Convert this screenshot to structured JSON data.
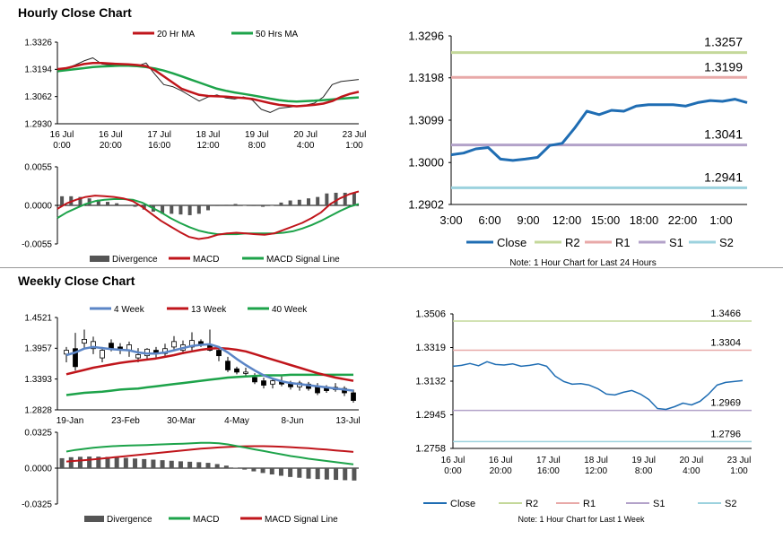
{
  "page": {
    "hourly_title": "Hourly Close Chart",
    "weekly_title": "Weekly Close Chart"
  },
  "colors": {
    "close": "#1f6db3",
    "ma_red": "#c0151b",
    "ma_green": "#1da34a",
    "r2": "#c4d89a",
    "r1": "#e8a9a8",
    "s1": "#b3a2c9",
    "s2": "#9cd2de",
    "divergence": "#555555",
    "four_week": "#5b85c6",
    "candle": "#000000"
  },
  "chart_data": [
    {
      "id": "hourly_price",
      "type": "line",
      "legend": [
        "20 Hr MA",
        "50 Hrs MA"
      ],
      "yticks": [
        "1.3326",
        "1.3194",
        "1.3062",
        "1.2930"
      ],
      "ylim": [
        1.293,
        1.3326
      ],
      "xticks": [
        [
          "16 Jul",
          "0:00"
        ],
        [
          "16 Jul",
          "20:00"
        ],
        [
          "17 Jul",
          "16:00"
        ],
        [
          "18 Jul",
          "12:00"
        ],
        [
          "19 Jul",
          "8:00"
        ],
        [
          "20 Jul",
          "4:00"
        ],
        [
          "23 Jul",
          "1:00"
        ]
      ],
      "close": [
        1.318,
        1.32,
        1.3215,
        1.3235,
        1.325,
        1.322,
        1.3215,
        1.322,
        1.3218,
        1.321,
        1.3225,
        1.317,
        1.312,
        1.311,
        1.309,
        1.3065,
        1.304,
        1.306,
        1.307,
        1.3055,
        1.305,
        1.306,
        1.3045,
        1.3,
        1.2985,
        1.3005,
        1.301,
        1.3015,
        1.302,
        1.303,
        1.306,
        1.312,
        1.3135,
        1.314,
        1.3145
      ],
      "ma20": [
        1.3195,
        1.32,
        1.321,
        1.322,
        1.3225,
        1.3225,
        1.3222,
        1.322,
        1.3218,
        1.3215,
        1.321,
        1.319,
        1.316,
        1.313,
        1.31,
        1.3085,
        1.307,
        1.3065,
        1.3063,
        1.3062,
        1.3058,
        1.3055,
        1.305,
        1.304,
        1.303,
        1.3022,
        1.3018,
        1.3015,
        1.3018,
        1.3022,
        1.3028,
        1.304,
        1.306,
        1.3075,
        1.3085
      ],
      "ma50": [
        1.3185,
        1.319,
        1.3195,
        1.32,
        1.3205,
        1.3208,
        1.321,
        1.3212,
        1.3212,
        1.321,
        1.3205,
        1.3198,
        1.3188,
        1.3175,
        1.316,
        1.3145,
        1.313,
        1.3115,
        1.31,
        1.309,
        1.3082,
        1.3075,
        1.3068,
        1.306,
        1.3052,
        1.3045,
        1.304,
        1.3038,
        1.304,
        1.3042,
        1.3045,
        1.3048,
        1.3052,
        1.3055,
        1.3058
      ]
    },
    {
      "id": "hourly_macd",
      "type": "line",
      "legend": [
        "Divergence",
        "MACD",
        "MACD Signal Line"
      ],
      "yticks": [
        "0.0055",
        "0.0000",
        "-0.0055"
      ],
      "ylim": [
        -0.0055,
        0.0055
      ],
      "macd": [
        -0.0005,
        0.0003,
        0.0008,
        0.0012,
        0.0014,
        0.0013,
        0.0012,
        0.001,
        0.0006,
        -0.0002,
        -0.0012,
        -0.0022,
        -0.003,
        -0.0038,
        -0.0045,
        -0.0048,
        -0.0046,
        -0.0042,
        -0.004,
        -0.0039,
        -0.004,
        -0.0041,
        -0.0042,
        -0.004,
        -0.0035,
        -0.003,
        -0.0025,
        -0.0018,
        -0.001,
        0.0002,
        0.001,
        0.0016,
        0.002
      ],
      "signal": [
        -0.0018,
        -0.001,
        -0.0004,
        0.0002,
        0.0006,
        0.0008,
        0.0009,
        0.0009,
        0.0008,
        0.0004,
        -0.0003,
        -0.001,
        -0.0018,
        -0.0025,
        -0.0031,
        -0.0036,
        -0.0039,
        -0.0041,
        -0.0041,
        -0.0041,
        -0.004,
        -0.004,
        -0.004,
        -0.004,
        -0.0039,
        -0.0037,
        -0.0033,
        -0.0028,
        -0.0022,
        -0.0015,
        -0.0008,
        -0.0002,
        0.0002
      ],
      "divergence": [
        0.0013,
        0.0013,
        0.0012,
        0.001,
        0.0008,
        0.0005,
        0.0003,
        0.0001,
        -0.0002,
        -0.0006,
        -0.0009,
        -0.0012,
        -0.0012,
        -0.0013,
        -0.0014,
        -0.0012,
        -0.0007,
        -0.0001,
        0.0001,
        0.0002,
        0.0,
        -0.0001,
        -0.0002,
        0.0,
        0.0004,
        0.0007,
        0.0008,
        0.001,
        0.0012,
        0.0017,
        0.0018,
        0.0018,
        0.0018
      ]
    },
    {
      "id": "hourly_24h",
      "type": "line",
      "legend": [
        "Close",
        "R2",
        "R1",
        "S1",
        "S2"
      ],
      "yticks": [
        "1.3296",
        "1.3198",
        "1.3099",
        "1.3000",
        "1.2902"
      ],
      "ylim": [
        1.2902,
        1.3296
      ],
      "xticks": [
        "3:00",
        "6:00",
        "9:00",
        "12:00",
        "15:00",
        "18:00",
        "22:00",
        "1:00"
      ],
      "levels": {
        "R2": 1.3257,
        "R1": 1.3199,
        "S1": 1.3041,
        "S2": 1.2941
      },
      "level_labels": {
        "R2": "1.3257",
        "R1": "1.3199",
        "S1": "1.3041",
        "S2": "1.2941"
      },
      "close": [
        1.3018,
        1.3022,
        1.3032,
        1.3035,
        1.3008,
        1.3005,
        1.3008,
        1.3012,
        1.304,
        1.3045,
        1.308,
        1.312,
        1.3112,
        1.3122,
        1.312,
        1.3132,
        1.3135,
        1.3135,
        1.3135,
        1.3132,
        1.314,
        1.3145,
        1.3143,
        1.3148,
        1.314
      ],
      "note": "Note: 1 Hour Chart for Last 24 Hours"
    },
    {
      "id": "weekly_price",
      "type": "line",
      "legend": [
        "4 Week",
        "13 Week",
        "40 Week"
      ],
      "yticks": [
        "1.4521",
        "1.3957",
        "1.3393",
        "1.2828"
      ],
      "ylim": [
        1.2828,
        1.4521
      ],
      "xticks": [
        "19-Jan",
        "23-Feb",
        "30-Mar",
        "4-May",
        "8-Jun",
        "13-Jul"
      ],
      "candles": [
        {
          "o": 1.385,
          "c": 1.392,
          "h": 1.398,
          "l": 1.37
        },
        {
          "o": 1.395,
          "c": 1.362,
          "h": 1.424,
          "l": 1.355
        },
        {
          "o": 1.405,
          "c": 1.412,
          "h": 1.43,
          "l": 1.395
        },
        {
          "o": 1.395,
          "c": 1.408,
          "h": 1.417,
          "l": 1.385
        },
        {
          "o": 1.378,
          "c": 1.392,
          "h": 1.398,
          "l": 1.37
        },
        {
          "o": 1.405,
          "c": 1.396,
          "h": 1.412,
          "l": 1.39
        },
        {
          "o": 1.398,
          "c": 1.392,
          "h": 1.405,
          "l": 1.385
        },
        {
          "o": 1.392,
          "c": 1.402,
          "h": 1.408,
          "l": 1.38
        },
        {
          "o": 1.378,
          "c": 1.384,
          "h": 1.396,
          "l": 1.37
        },
        {
          "o": 1.382,
          "c": 1.394,
          "h": 1.396,
          "l": 1.376
        },
        {
          "o": 1.392,
          "c": 1.386,
          "h": 1.398,
          "l": 1.378
        },
        {
          "o": 1.386,
          "c": 1.395,
          "h": 1.404,
          "l": 1.38
        },
        {
          "o": 1.398,
          "c": 1.408,
          "h": 1.418,
          "l": 1.392
        },
        {
          "o": 1.392,
          "c": 1.402,
          "h": 1.41,
          "l": 1.385
        },
        {
          "o": 1.398,
          "c": 1.41,
          "h": 1.425,
          "l": 1.392
        },
        {
          "o": 1.408,
          "c": 1.402,
          "h": 1.412,
          "l": 1.398
        },
        {
          "o": 1.402,
          "c": 1.392,
          "h": 1.43,
          "l": 1.39
        },
        {
          "o": 1.392,
          "c": 1.382,
          "h": 1.398,
          "l": 1.372
        },
        {
          "o": 1.372,
          "c": 1.356,
          "h": 1.38,
          "l": 1.352
        },
        {
          "o": 1.358,
          "c": 1.352,
          "h": 1.362,
          "l": 1.348
        },
        {
          "o": 1.352,
          "c": 1.352,
          "h": 1.36,
          "l": 1.346
        },
        {
          "o": 1.342,
          "c": 1.334,
          "h": 1.35,
          "l": 1.33
        },
        {
          "o": 1.336,
          "c": 1.328,
          "h": 1.342,
          "l": 1.322
        },
        {
          "o": 1.33,
          "c": 1.336,
          "h": 1.34,
          "l": 1.322
        },
        {
          "o": 1.334,
          "c": 1.33,
          "h": 1.344,
          "l": 1.326
        },
        {
          "o": 1.33,
          "c": 1.325,
          "h": 1.336,
          "l": 1.32
        },
        {
          "o": 1.325,
          "c": 1.332,
          "h": 1.336,
          "l": 1.318
        },
        {
          "o": 1.33,
          "c": 1.322,
          "h": 1.334,
          "l": 1.318
        },
        {
          "o": 1.326,
          "c": 1.314,
          "h": 1.332,
          "l": 1.31
        },
        {
          "o": 1.324,
          "c": 1.318,
          "h": 1.328,
          "l": 1.314
        },
        {
          "o": 1.324,
          "c": 1.32,
          "h": 1.332,
          "l": 1.316
        },
        {
          "o": 1.322,
          "c": 1.314,
          "h": 1.326,
          "l": 1.308
        },
        {
          "o": 1.314,
          "c": 1.3,
          "h": 1.32,
          "l": 1.296
        }
      ],
      "wk4": [
        1.383,
        1.388,
        1.395,
        1.398,
        1.396,
        1.394,
        1.393,
        1.392,
        1.388,
        1.386,
        1.386,
        1.388,
        1.392,
        1.396,
        1.4,
        1.402,
        1.403,
        1.398,
        1.388,
        1.376,
        1.365,
        1.355,
        1.346,
        1.34,
        1.335,
        1.332,
        1.33,
        1.328,
        1.326,
        1.324,
        1.322,
        1.32,
        1.318
      ],
      "wk13": [
        1.348,
        1.352,
        1.356,
        1.36,
        1.363,
        1.366,
        1.369,
        1.371,
        1.373,
        1.375,
        1.377,
        1.38,
        1.383,
        1.387,
        1.39,
        1.393,
        1.395,
        1.396,
        1.395,
        1.393,
        1.39,
        1.385,
        1.38,
        1.375,
        1.37,
        1.365,
        1.36,
        1.355,
        1.35,
        1.346,
        1.342,
        1.339,
        1.336
      ],
      "wk40": [
        1.31,
        1.312,
        1.314,
        1.315,
        1.316,
        1.318,
        1.32,
        1.321,
        1.322,
        1.324,
        1.326,
        1.328,
        1.33,
        1.332,
        1.334,
        1.336,
        1.338,
        1.34,
        1.342,
        1.343,
        1.344,
        1.345,
        1.346,
        1.346,
        1.346,
        1.347,
        1.347,
        1.347,
        1.347,
        1.347,
        1.347,
        1.347,
        1.347
      ]
    },
    {
      "id": "weekly_macd",
      "type": "line",
      "legend": [
        "Divergence",
        "MACD",
        "MACD Signal Line"
      ],
      "yticks": [
        "0.0325",
        "0.0000",
        "-0.0325"
      ],
      "ylim": [
        -0.0325,
        0.0325
      ],
      "macd": [
        0.015,
        0.0165,
        0.0175,
        0.0185,
        0.0192,
        0.0198,
        0.0202,
        0.0205,
        0.0207,
        0.021,
        0.0213,
        0.0216,
        0.0219,
        0.0222,
        0.0226,
        0.023,
        0.023,
        0.0225,
        0.0215,
        0.02,
        0.0185,
        0.017,
        0.0155,
        0.014,
        0.0125,
        0.011,
        0.0098,
        0.0085,
        0.0075,
        0.0065,
        0.0055,
        0.0045,
        0.0035
      ],
      "signal": [
        0.006,
        0.0066,
        0.0072,
        0.008,
        0.0088,
        0.0096,
        0.0104,
        0.0112,
        0.012,
        0.0128,
        0.0136,
        0.0144,
        0.0152,
        0.016,
        0.0168,
        0.0176,
        0.0182,
        0.0188,
        0.0192,
        0.0196,
        0.0198,
        0.0199,
        0.0199,
        0.0197,
        0.0194,
        0.019,
        0.0185,
        0.018,
        0.0174,
        0.0168,
        0.0161,
        0.0154,
        0.0147
      ],
      "divergence": [
        0.009,
        0.0099,
        0.0103,
        0.0105,
        0.0104,
        0.0102,
        0.0098,
        0.0093,
        0.0087,
        0.0082,
        0.0077,
        0.0072,
        0.0067,
        0.0062,
        0.0058,
        0.0054,
        0.0048,
        0.0037,
        0.0023,
        0.0004,
        -0.0013,
        -0.0029,
        -0.0044,
        -0.0057,
        -0.0069,
        -0.008,
        -0.0087,
        -0.0095,
        -0.0099,
        -0.0103,
        -0.0106,
        -0.0109,
        -0.0112
      ]
    },
    {
      "id": "weekly_1w",
      "type": "line",
      "legend": [
        "Close",
        "R2",
        "R1",
        "S1",
        "S2"
      ],
      "yticks": [
        "1.3506",
        "1.3319",
        "1.3132",
        "1.2945",
        "1.2758"
      ],
      "ylim": [
        1.2758,
        1.3506
      ],
      "xticks": [
        [
          "16 Jul",
          "0:00"
        ],
        [
          "16 Jul",
          "20:00"
        ],
        [
          "17 Jul",
          "16:00"
        ],
        [
          "18 Jul",
          "12:00"
        ],
        [
          "19 Jul",
          "8:00"
        ],
        [
          "20 Jul",
          "4:00"
        ],
        [
          "23 Jul",
          "1:00"
        ]
      ],
      "levels": {
        "R2": 1.3466,
        "R1": 1.3304,
        "S1": 1.2969,
        "S2": 1.2796
      },
      "level_labels": {
        "R2": "1.3466",
        "R1": "1.3304",
        "S1": "1.2969",
        "S2": "1.2796"
      },
      "close": [
        1.3215,
        1.322,
        1.323,
        1.3218,
        1.324,
        1.3225,
        1.3222,
        1.3228,
        1.3215,
        1.322,
        1.3228,
        1.3215,
        1.316,
        1.313,
        1.3115,
        1.3118,
        1.311,
        1.309,
        1.306,
        1.3055,
        1.307,
        1.308,
        1.306,
        1.303,
        1.298,
        1.2975,
        1.299,
        1.301,
        1.3,
        1.302,
        1.306,
        1.311,
        1.3125,
        1.313,
        1.3135
      ],
      "note": "Note: 1 Hour Chart for Last 1 Week"
    }
  ]
}
